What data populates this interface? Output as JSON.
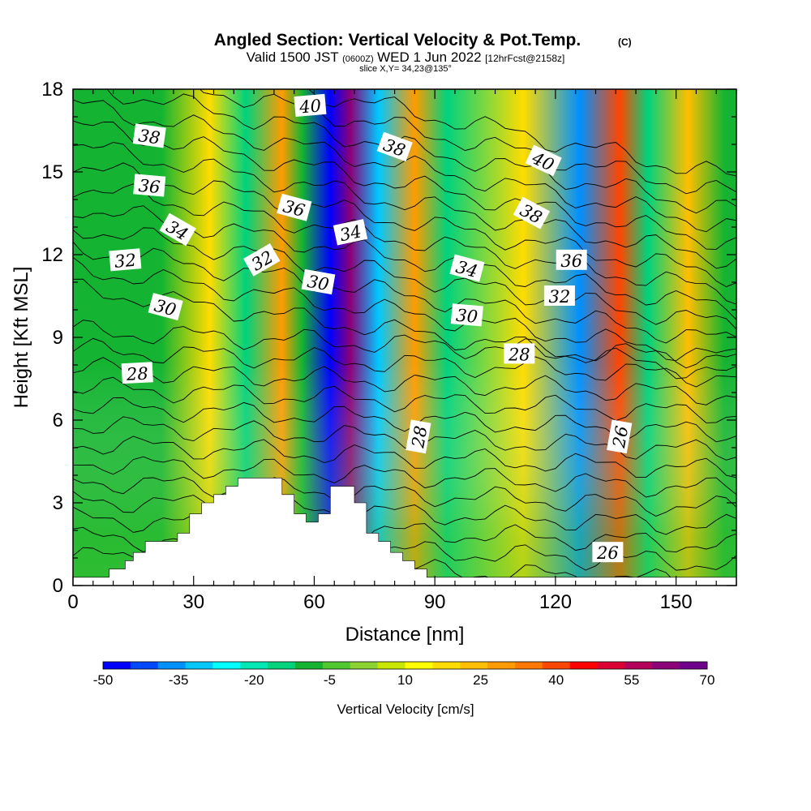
{
  "chart_data": {
    "type": "contour-cross-section",
    "title": "Angled Section: Vertical Velocity & Pot.Temp.",
    "title_suffix": "(C)",
    "subtitle_prefix": "Valid 1500 JST",
    "subtitle_utc": "(0600Z)",
    "subtitle_date": "WED 1 Jun 2022",
    "subtitle_fcst": "[12hrFcst@2158z]",
    "slice_label": "slice X,Y= 34,23@135°",
    "xlabel": "Distance [nm]",
    "ylabel": "Height [Kft MSL]",
    "xlim": [
      0,
      165
    ],
    "ylim": [
      0,
      18
    ],
    "x_ticks": [
      "0",
      "30",
      "60",
      "90",
      "120",
      "150"
    ],
    "y_ticks": [
      "0",
      "3",
      "6",
      "9",
      "12",
      "15",
      "18"
    ],
    "colorbar": {
      "label": "Vertical Velocity [cm/s]",
      "tick_labels": [
        "-50",
        "-35",
        "-20",
        "-5",
        "10",
        "25",
        "40",
        "55",
        "70"
      ],
      "colors": [
        "#0000ff",
        "#0048ff",
        "#0090ff",
        "#00c8ff",
        "#00ffff",
        "#00e6b4",
        "#00d27d",
        "#14b432",
        "#50c832",
        "#8cd232",
        "#c8e600",
        "#ffff00",
        "#ffdc00",
        "#ffbe00",
        "#ff9b00",
        "#ff7800",
        "#ff4600",
        "#ff0000",
        "#dc0032",
        "#b4005a",
        "#8c0078",
        "#6e008c"
      ]
    },
    "velocity_bands": [
      {
        "x": 5,
        "v": -10
      },
      {
        "x": 22,
        "v": -8
      },
      {
        "x": 34,
        "v": 20
      },
      {
        "x": 43,
        "v": -15
      },
      {
        "x": 52,
        "v": 28
      },
      {
        "x": 57,
        "v": -10
      },
      {
        "x": 64,
        "v": -45
      },
      {
        "x": 69,
        "v": 62
      },
      {
        "x": 76,
        "v": -30
      },
      {
        "x": 85,
        "v": 30
      },
      {
        "x": 93,
        "v": -12
      },
      {
        "x": 112,
        "v": 20
      },
      {
        "x": 126,
        "v": -38
      },
      {
        "x": 136,
        "v": 40
      },
      {
        "x": 143,
        "v": -15
      },
      {
        "x": 153,
        "v": 22
      },
      {
        "x": 162,
        "v": -8
      }
    ],
    "isentrope_labels": [
      {
        "text": "40",
        "x": 59,
        "y": 17.4,
        "angle": -5
      },
      {
        "text": "38",
        "x": 19,
        "y": 16.3,
        "angle": 8
      },
      {
        "text": "38",
        "x": 80,
        "y": 15.9,
        "angle": 20
      },
      {
        "text": "40",
        "x": 117,
        "y": 15.4,
        "angle": 25
      },
      {
        "text": "36",
        "x": 19,
        "y": 14.5,
        "angle": 5
      },
      {
        "text": "36",
        "x": 55,
        "y": 13.7,
        "angle": 15
      },
      {
        "text": "38",
        "x": 114,
        "y": 13.5,
        "angle": 28
      },
      {
        "text": "34",
        "x": 26,
        "y": 12.9,
        "angle": 30
      },
      {
        "text": "34",
        "x": 69,
        "y": 12.8,
        "angle": -12
      },
      {
        "text": "32",
        "x": 13,
        "y": 11.8,
        "angle": -5
      },
      {
        "text": "32",
        "x": 47,
        "y": 11.8,
        "angle": -30
      },
      {
        "text": "36",
        "x": 124,
        "y": 11.8,
        "angle": 0
      },
      {
        "text": "34",
        "x": 98,
        "y": 11.5,
        "angle": 15
      },
      {
        "text": "30",
        "x": 61,
        "y": 11.0,
        "angle": 10
      },
      {
        "text": "32",
        "x": 121,
        "y": 10.5,
        "angle": 0
      },
      {
        "text": "30",
        "x": 23,
        "y": 10.1,
        "angle": 15
      },
      {
        "text": "30",
        "x": 98,
        "y": 9.8,
        "angle": 5
      },
      {
        "text": "28",
        "x": 111,
        "y": 8.4,
        "angle": 0
      },
      {
        "text": "28",
        "x": 16,
        "y": 7.7,
        "angle": -3
      },
      {
        "text": "28",
        "x": 86,
        "y": 5.4,
        "angle": -80
      },
      {
        "text": "26",
        "x": 136,
        "y": 5.4,
        "angle": -80
      },
      {
        "text": "26",
        "x": 133,
        "y": 1.2,
        "angle": 0
      }
    ]
  }
}
